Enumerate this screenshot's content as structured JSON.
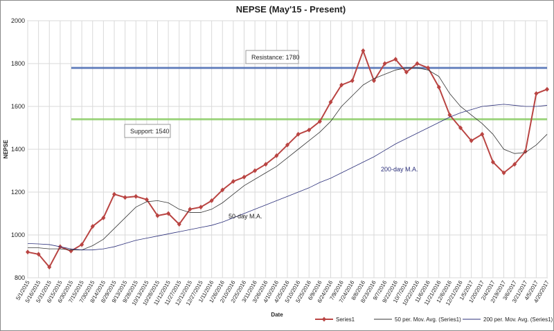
{
  "chart_data": {
    "type": "line",
    "title": "NEPSE (May'15 - Present)",
    "x_label": "Date",
    "y_label": "NEPSE",
    "categories": [
      "5/1/2015",
      "5/16/2015",
      "5/31/2015",
      "6/15/2015",
      "6/30/2015",
      "7/15/2015",
      "7/30/2015",
      "8/14/2015",
      "8/29/2015",
      "9/13/2015",
      "9/28/2015",
      "10/13/2015",
      "10/28/2015",
      "11/12/2015",
      "11/27/2015",
      "12/12/2015",
      "12/27/2015",
      "1/11/2016",
      "1/26/2016",
      "2/10/2016",
      "2/25/2016",
      "3/11/2016",
      "3/26/2016",
      "4/10/2016",
      "4/25/2016",
      "5/10/2016",
      "5/25/2016",
      "6/9/2016",
      "6/24/2016",
      "7/9/2016",
      "7/24/2016",
      "8/8/2016",
      "8/23/2016",
      "9/7/2016",
      "9/22/2016",
      "10/7/2016",
      "10/22/2016",
      "11/6/2016",
      "11/21/2016",
      "12/6/2016",
      "12/21/2016",
      "1/5/2017",
      "1/20/2017",
      "2/4/2017",
      "2/19/2017",
      "3/6/2017",
      "3/21/2017",
      "4/5/2017",
      "4/20/2017"
    ],
    "series": [
      {
        "name": "Series1",
        "color": "#b94442",
        "marker": "diamond",
        "values": [
          920,
          910,
          850,
          945,
          925,
          955,
          1040,
          1080,
          1190,
          1175,
          1180,
          1165,
          1090,
          1100,
          1050,
          1120,
          1130,
          1160,
          1210,
          1250,
          1270,
          1300,
          1330,
          1370,
          1420,
          1470,
          1490,
          1530,
          1620,
          1700,
          1720,
          1860,
          1720,
          1800,
          1820,
          1760,
          1800,
          1780,
          1690,
          1560,
          1500,
          1440,
          1470,
          1340,
          1290,
          1330,
          1390,
          1660,
          1680
        ]
      },
      {
        "name": "50 per. Mov. Avg. (Series1)",
        "color": "#333333",
        "values": [
          940,
          940,
          935,
          935,
          930,
          930,
          950,
          980,
          1030,
          1080,
          1130,
          1155,
          1160,
          1150,
          1120,
          1105,
          1105,
          1120,
          1150,
          1190,
          1230,
          1260,
          1290,
          1320,
          1360,
          1400,
          1440,
          1480,
          1530,
          1600,
          1650,
          1700,
          1730,
          1750,
          1770,
          1780,
          1780,
          1770,
          1740,
          1660,
          1600,
          1560,
          1520,
          1470,
          1400,
          1380,
          1385,
          1420,
          1470
        ]
      },
      {
        "name": "200 per. Mov. Avg. (Series1)",
        "color": "#2b2f7a",
        "values": [
          960,
          958,
          955,
          945,
          935,
          930,
          930,
          935,
          945,
          960,
          975,
          985,
          995,
          1005,
          1015,
          1025,
          1035,
          1045,
          1060,
          1080,
          1100,
          1120,
          1140,
          1160,
          1180,
          1200,
          1220,
          1245,
          1265,
          1290,
          1315,
          1340,
          1365,
          1395,
          1425,
          1450,
          1475,
          1500,
          1525,
          1550,
          1570,
          1585,
          1600,
          1605,
          1610,
          1605,
          1600,
          1600,
          1605
        ]
      }
    ],
    "reference_lines": [
      {
        "label": "Resistance: 1780",
        "value": 1780,
        "color": "#4f6fb5"
      },
      {
        "label": "Support: 1540",
        "value": 1540,
        "color": "#8fce6a"
      }
    ],
    "annotations": [
      "200-day M.A.",
      "50-day M.A."
    ],
    "ylim": [
      800,
      2000
    ],
    "yticks": [
      800,
      1000,
      1200,
      1400,
      1600,
      1800,
      2000
    ],
    "grid": true,
    "legend": "bottom"
  }
}
